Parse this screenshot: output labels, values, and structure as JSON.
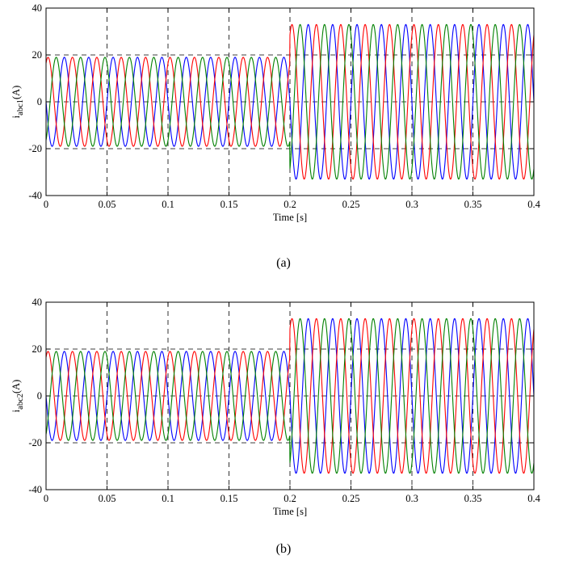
{
  "chart_data": [
    {
      "type": "line",
      "panel": "a",
      "caption": "(a)",
      "ylabel_main": "i",
      "ylabel_sub": "abc1",
      "ylabel_unit": "(A)",
      "xlabel": "Time [s]",
      "xlim": [
        0,
        0.4
      ],
      "ylim": [
        -40,
        40
      ],
      "xticks": [
        "0",
        "0.05",
        "0.1",
        "0.15",
        "0.2",
        "0.25",
        "0.3",
        "0.35",
        "0.4"
      ],
      "yticks": [
        "40",
        "20",
        "0",
        "-20",
        "-40"
      ],
      "grid": true,
      "frequency_hz": 50,
      "step_time": 0.2,
      "amplitude_before": 19,
      "amplitude_after": 33,
      "series": [
        {
          "phase_deg": 180,
          "color": "#0000ff"
        },
        {
          "phase_deg": 60,
          "color": "#ff0000"
        },
        {
          "phase_deg": -60,
          "color": "#008000"
        }
      ]
    },
    {
      "type": "line",
      "panel": "b",
      "caption": "(b)",
      "ylabel_main": "i",
      "ylabel_sub": "abc2",
      "ylabel_unit": "(A)",
      "xlabel": "Time [s]",
      "xlim": [
        0,
        0.4
      ],
      "ylim": [
        -40,
        40
      ],
      "xticks": [
        "0",
        "0.05",
        "0.1",
        "0.15",
        "0.2",
        "0.25",
        "0.3",
        "0.35",
        "0.4"
      ],
      "yticks": [
        "40",
        "20",
        "0",
        "-20",
        "-40"
      ],
      "grid": true,
      "frequency_hz": 50,
      "step_time": 0.2,
      "amplitude_before": 19,
      "amplitude_after": 33,
      "series": [
        {
          "phase_deg": 180,
          "color": "#0000ff"
        },
        {
          "phase_deg": 60,
          "color": "#ff0000"
        },
        {
          "phase_deg": -60,
          "color": "#008000"
        }
      ]
    }
  ]
}
